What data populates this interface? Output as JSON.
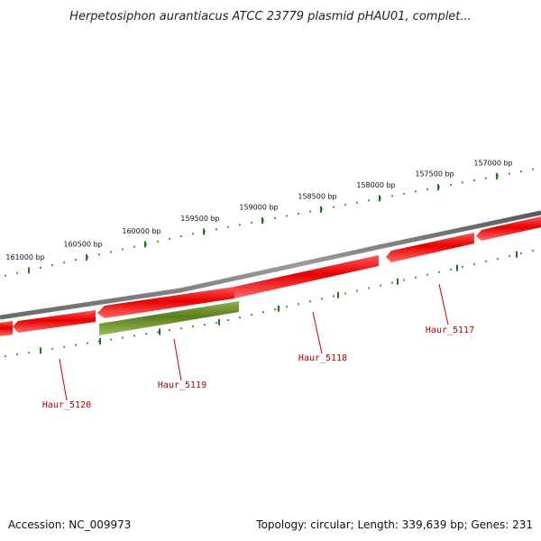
{
  "title": "Herpetosiphon aurantiacus ATCC 23779 plasmid pHAU01, complet...",
  "footer": {
    "accession": "Accession: NC_009973",
    "summary": "Topology: circular; Length: 339,639 bp; Genes: 231"
  },
  "ruler": {
    "ticks": [
      {
        "label": "161000 bp",
        "pos": 161000
      },
      {
        "label": "160500 bp",
        "pos": 160500
      },
      {
        "label": "160000 bp",
        "pos": 160000
      },
      {
        "label": "159500 bp",
        "pos": 159500
      },
      {
        "label": "159000 bp",
        "pos": 159000
      },
      {
        "label": "158500 bp",
        "pos": 158500
      },
      {
        "label": "158000 bp",
        "pos": 158000
      },
      {
        "label": "157500 bp",
        "pos": 157500
      },
      {
        "label": "157000 bp",
        "pos": 157000
      }
    ]
  },
  "genes": [
    {
      "name": "Haur_5120",
      "color": "#e60000"
    },
    {
      "name": "Haur_5119",
      "color": "#6b8e23"
    },
    {
      "name": "Haur_5118",
      "color": "#e60000"
    },
    {
      "name": "Haur_5117",
      "color": "#e60000"
    }
  ],
  "colors": {
    "backbone": "#808080",
    "tick": "#1a7a1a",
    "cds": "#e60000",
    "cds_alt": "#6b8e23",
    "label": "#b30000"
  }
}
